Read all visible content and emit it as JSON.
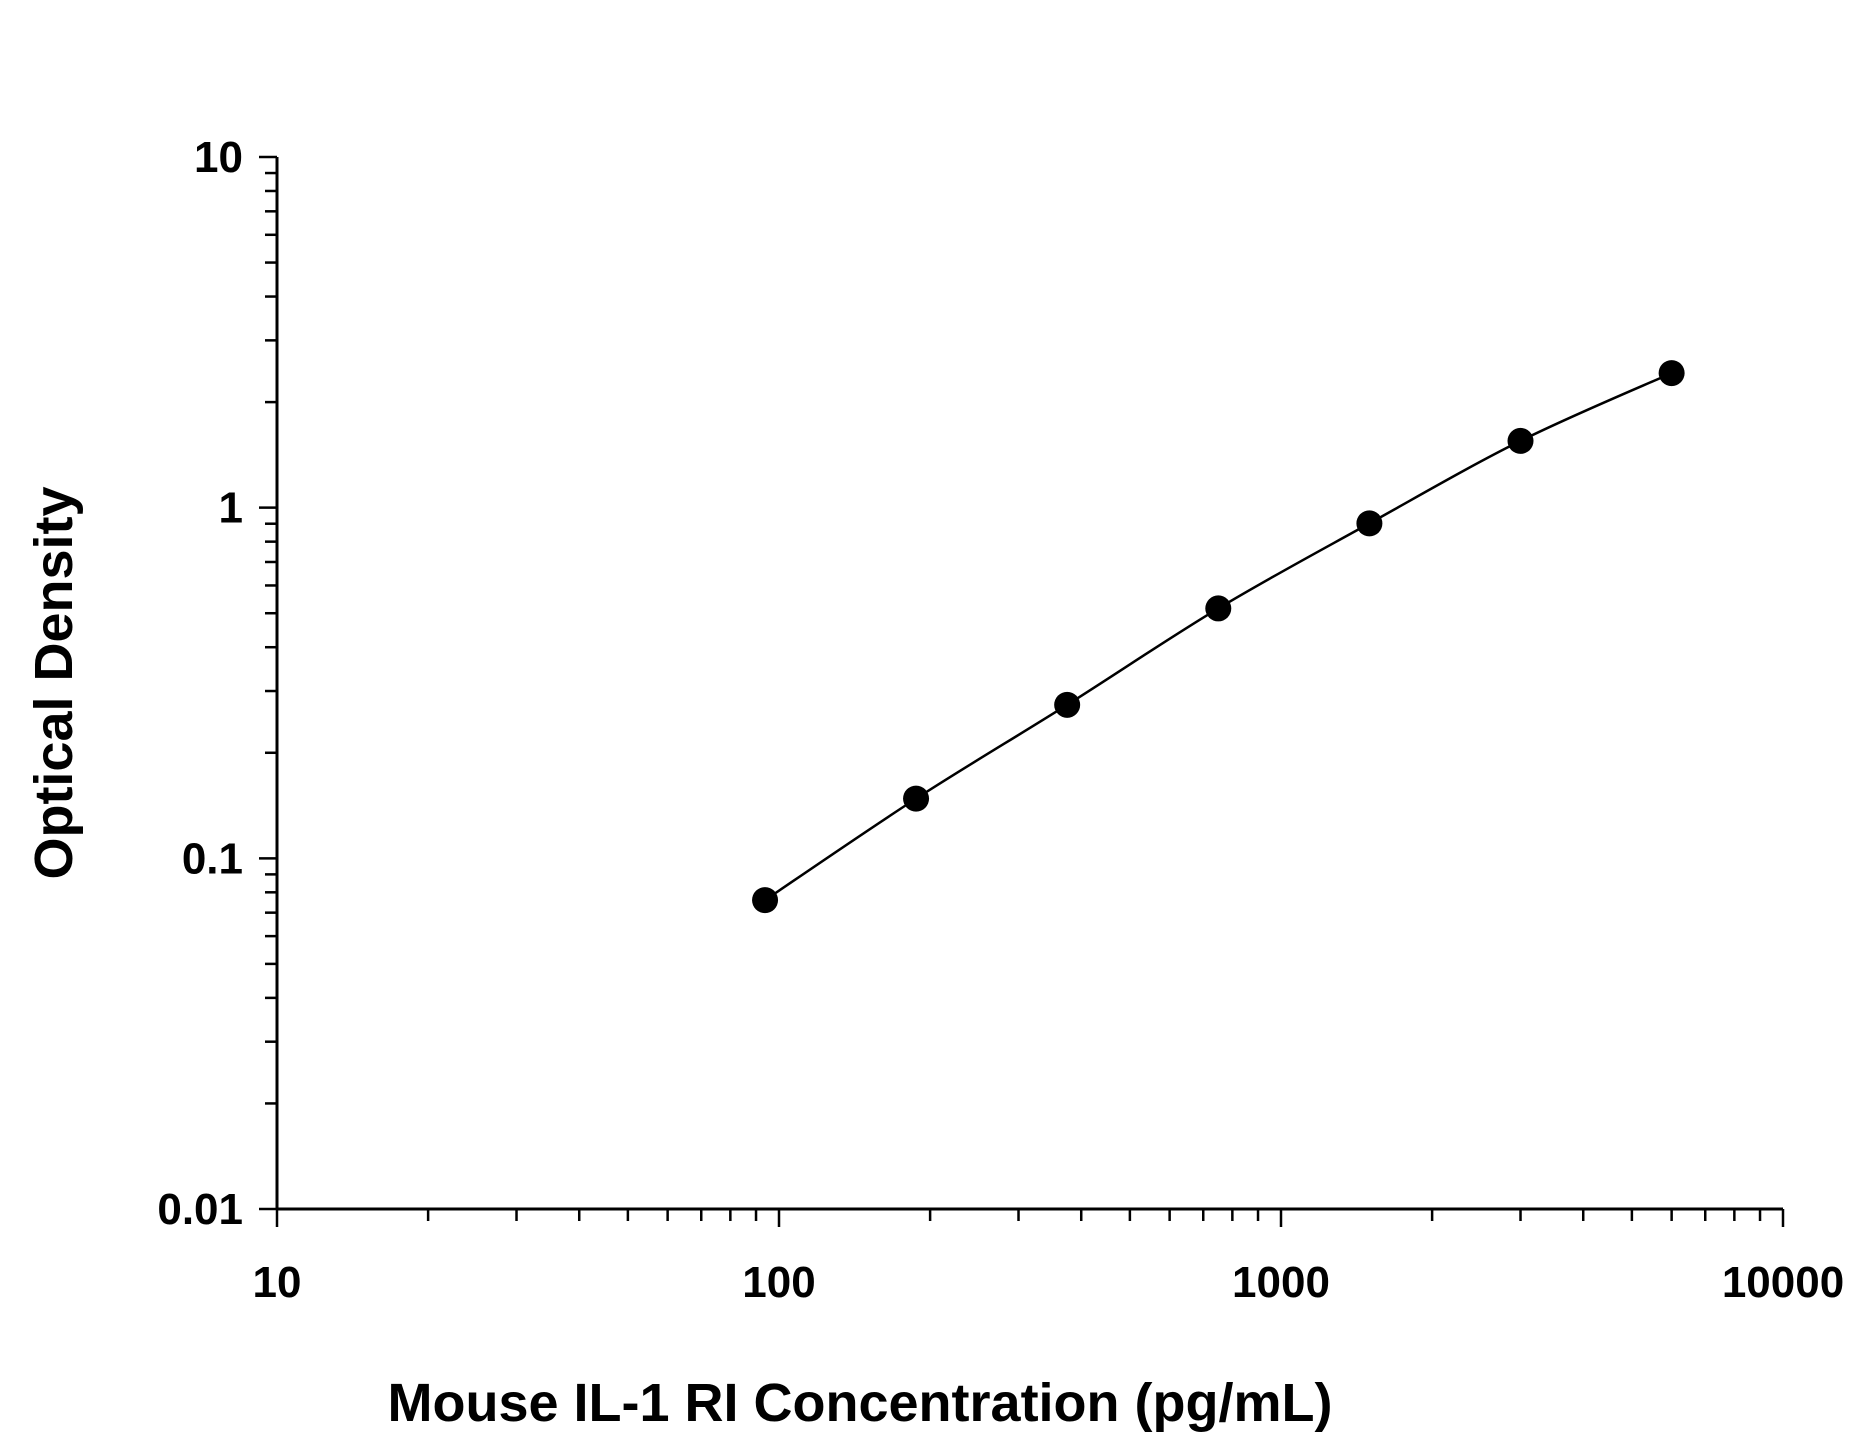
{
  "chart_data": {
    "type": "scatter",
    "title": "",
    "xlabel": "Mouse IL-1 RI Concentration (pg/mL)",
    "ylabel": "Optical Density",
    "xscale": "log",
    "yscale": "log",
    "xlim": [
      10,
      10000
    ],
    "ylim": [
      0.01,
      10
    ],
    "xticks": [
      "10",
      "100",
      "1000",
      "10000"
    ],
    "yticks": [
      "0.01",
      "0.1",
      "1",
      "10"
    ],
    "grid": false,
    "legend": "none",
    "series": [
      {
        "x": [
          93.8,
          187.5,
          375,
          750,
          1500,
          3000,
          6000
        ],
        "y": [
          0.076,
          0.148,
          0.274,
          0.516,
          0.902,
          1.55,
          2.42
        ],
        "style": "markers with fitted curve",
        "color": "#000000"
      }
    ]
  }
}
